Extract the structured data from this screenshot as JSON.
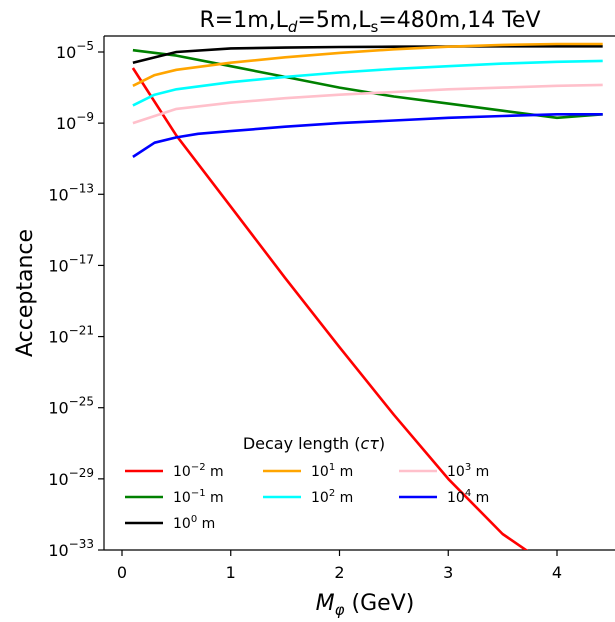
{
  "chart_data": {
    "type": "line",
    "title": "R=1m,L_d=5m,L_s=480m,14 TeV",
    "title_parts": {
      "p1": "R=1m,L",
      "p2": "d",
      "p3": "=5m,L",
      "p4": "s",
      "p5": "=480m,14 TeV"
    },
    "xlabel": "M_φ (GeV)",
    "xlabel_parts": {
      "main": "M",
      "sub": "φ",
      "rest": " (GeV)"
    },
    "ylabel": "Acceptance",
    "xlim": [
      -0.1,
      4.42
    ],
    "ylim_exponent": [
      -33,
      -4
    ],
    "yscale": "log",
    "grid": false,
    "x_ticks": [
      {
        "value": 0,
        "label": "0"
      },
      {
        "value": 1,
        "label": "1"
      },
      {
        "value": 2,
        "label": "2"
      },
      {
        "value": 3,
        "label": "3"
      },
      {
        "value": 4,
        "label": "4"
      }
    ],
    "y_ticks": [
      {
        "exp": -5,
        "base": "10",
        "sup": "−5"
      },
      {
        "exp": -9,
        "base": "10",
        "sup": "−9"
      },
      {
        "exp": -13,
        "base": "10",
        "sup": "−13"
      },
      {
        "exp": -17,
        "base": "10",
        "sup": "−17"
      },
      {
        "exp": -21,
        "base": "10",
        "sup": "−21"
      },
      {
        "exp": -25,
        "base": "10",
        "sup": "−25"
      },
      {
        "exp": -29,
        "base": "10",
        "sup": "−29"
      },
      {
        "exp": -33,
        "base": "10",
        "sup": "−33"
      }
    ],
    "legend": {
      "title": "Decay length (cτ)",
      "title_parts": {
        "a": "Decay length (",
        "b": "cτ",
        "c": ")"
      },
      "placement": "lower-center"
    },
    "series": [
      {
        "name": "10^-2 m",
        "label_base": "10",
        "label_sup": "−2",
        "label_unit": " m",
        "color": "#ff0000",
        "x": [
          0.1,
          0.5,
          1.0,
          1.5,
          2.0,
          2.5,
          3.0,
          3.5,
          4.0,
          4.42
        ],
        "log10_y": [
          -5.9,
          -9.7,
          -13.7,
          -17.7,
          -21.6,
          -25.4,
          -29.0,
          -32.1,
          -34.2,
          -34.2
        ]
      },
      {
        "name": "10^-1 m",
        "label_base": "10",
        "label_sup": "−1",
        "label_unit": " m",
        "color": "#008000",
        "x": [
          0.1,
          0.5,
          1.0,
          1.5,
          2.0,
          2.5,
          3.0,
          3.5,
          4.0,
          4.42
        ],
        "log10_y": [
          -4.9,
          -5.2,
          -5.8,
          -6.4,
          -7.0,
          -7.5,
          -7.9,
          -8.3,
          -8.7,
          -8.5
        ]
      },
      {
        "name": "10^0 m",
        "label_base": "10",
        "label_sup": "0",
        "label_unit": " m",
        "color": "#000000",
        "x": [
          0.1,
          0.5,
          1.0,
          1.5,
          2.0,
          2.5,
          3.0,
          3.5,
          4.0,
          4.42
        ],
        "log10_y": [
          -5.6,
          -5.0,
          -4.8,
          -4.75,
          -4.72,
          -4.7,
          -4.69,
          -4.68,
          -4.68,
          -4.68
        ]
      },
      {
        "name": "10^1 m",
        "label_base": "10",
        "label_sup": "1",
        "label_unit": " m",
        "color": "#ffa500",
        "x": [
          0.1,
          0.3,
          0.5,
          1.0,
          1.5,
          2.0,
          2.5,
          3.0,
          3.5,
          4.0,
          4.42
        ],
        "log10_y": [
          -6.9,
          -6.3,
          -6.0,
          -5.6,
          -5.3,
          -5.05,
          -4.85,
          -4.7,
          -4.6,
          -4.55,
          -4.55
        ]
      },
      {
        "name": "10^2 m",
        "label_base": "10",
        "label_sup": "2",
        "label_unit": " m",
        "color": "#00ffff",
        "x": [
          0.1,
          0.3,
          0.5,
          1.0,
          1.5,
          2.0,
          2.5,
          3.0,
          3.5,
          4.0,
          4.42
        ],
        "log10_y": [
          -8.0,
          -7.4,
          -7.1,
          -6.7,
          -6.4,
          -6.15,
          -5.95,
          -5.8,
          -5.65,
          -5.55,
          -5.5
        ]
      },
      {
        "name": "10^3 m",
        "label_base": "10",
        "label_sup": "3",
        "label_unit": " m",
        "color": "#ffc0cb",
        "x": [
          0.1,
          0.5,
          1.0,
          1.5,
          2.0,
          2.5,
          3.0,
          3.5,
          4.0,
          4.42
        ],
        "log10_y": [
          -9.0,
          -8.2,
          -7.85,
          -7.6,
          -7.4,
          -7.25,
          -7.1,
          -7.0,
          -6.9,
          -6.85
        ]
      },
      {
        "name": "10^4 m",
        "label_base": "10",
        "label_sup": "4",
        "label_unit": " m",
        "color": "#0000ff",
        "x": [
          0.1,
          0.3,
          0.5,
          0.7,
          1.0,
          1.5,
          2.0,
          2.5,
          3.0,
          3.5,
          4.0,
          4.42
        ],
        "log10_y": [
          -10.9,
          -10.1,
          -9.8,
          -9.6,
          -9.45,
          -9.2,
          -9.0,
          -8.85,
          -8.7,
          -8.6,
          -8.5,
          -8.5
        ]
      }
    ]
  }
}
